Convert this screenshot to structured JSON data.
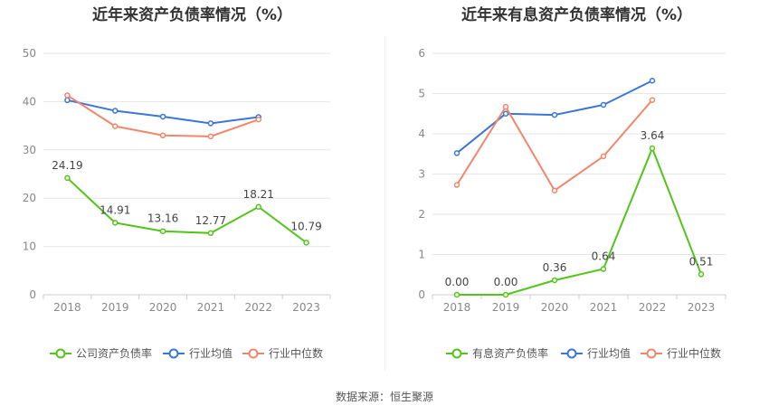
{
  "source_text": "数据来源：恒生聚源",
  "chart_data": [
    {
      "type": "line",
      "title": "近年来资产负债率情况（%）",
      "categories": [
        "2018",
        "2019",
        "2020",
        "2021",
        "2022",
        "2023"
      ],
      "ylim": [
        0,
        50
      ],
      "yticks": [
        0,
        10,
        20,
        30,
        40,
        50
      ],
      "grid": true,
      "legend_position": "bottom",
      "series": [
        {
          "name": "公司资产负债率",
          "color": "#52c41a",
          "values": [
            24.19,
            14.91,
            13.16,
            12.77,
            18.21,
            10.79
          ],
          "labels": [
            "24.19",
            "14.91",
            "13.16",
            "12.77",
            "18.21",
            "10.79"
          ]
        },
        {
          "name": "行业均值",
          "color": "#3a75d8",
          "values": [
            40.3,
            38.1,
            36.9,
            35.5,
            36.8,
            null
          ]
        },
        {
          "name": "行业中位数",
          "color": "#f0866a",
          "values": [
            41.3,
            34.9,
            33.0,
            32.8,
            36.3,
            null
          ]
        }
      ]
    },
    {
      "type": "line",
      "title": "近年来有息资产负债率情况（%）",
      "categories": [
        "2018",
        "2019",
        "2020",
        "2021",
        "2022",
        "2023"
      ],
      "ylim": [
        0,
        6
      ],
      "yticks": [
        0,
        1,
        2,
        3,
        4,
        5,
        6
      ],
      "grid": true,
      "legend_position": "bottom",
      "series": [
        {
          "name": "有息资产负债率",
          "color": "#52c41a",
          "values": [
            0.0,
            0.0,
            0.36,
            0.64,
            3.64,
            0.51
          ],
          "labels": [
            "0.00",
            "0.00",
            "0.36",
            "0.64",
            "3.64",
            "0.51"
          ]
        },
        {
          "name": "行业均值",
          "color": "#3a75d8",
          "values": [
            3.52,
            4.5,
            4.47,
            4.72,
            5.32,
            null
          ]
        },
        {
          "name": "行业中位数",
          "color": "#f0866a",
          "values": [
            2.73,
            4.67,
            2.59,
            3.44,
            4.84,
            null
          ]
        }
      ]
    }
  ]
}
